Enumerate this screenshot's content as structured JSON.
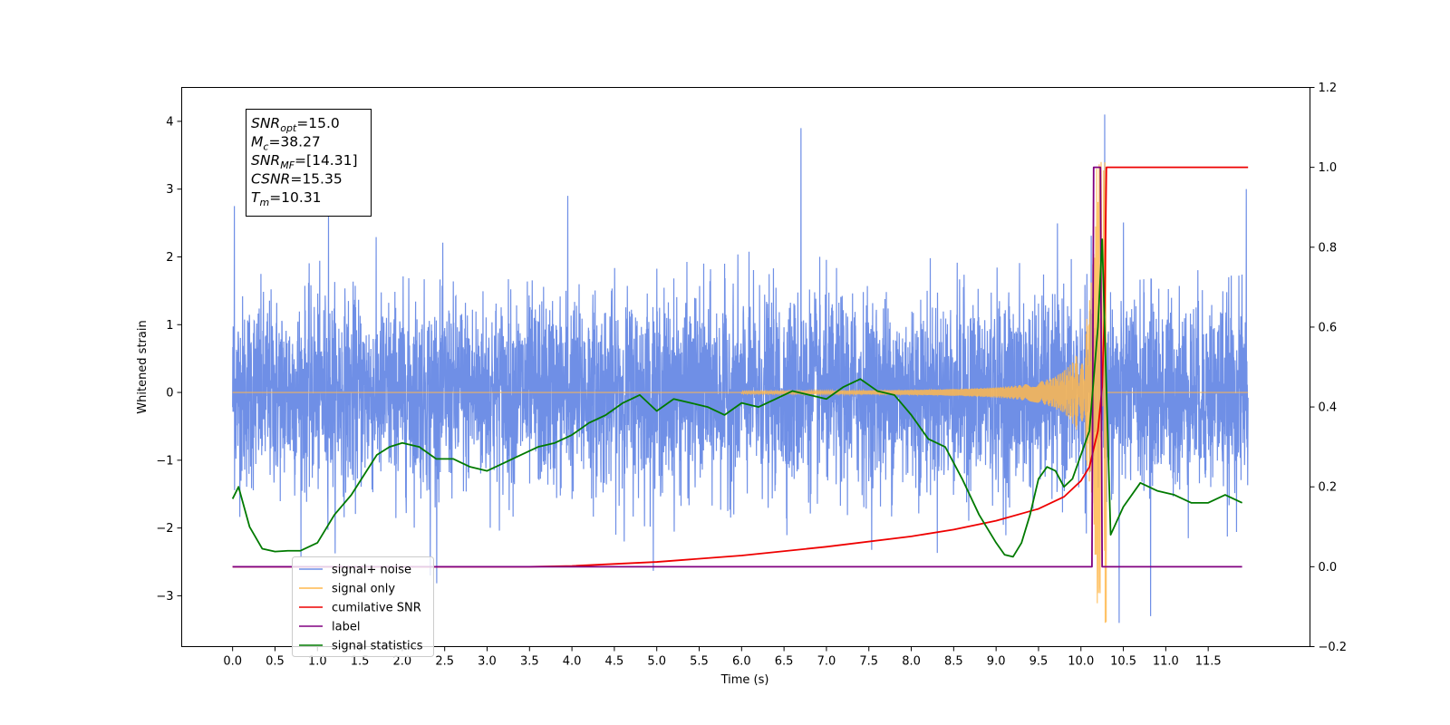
{
  "chart_data": {
    "type": "line",
    "xlabel": "Time (s)",
    "ylabel": "Whitened strain",
    "xlim": [
      -0.6,
      12.7
    ],
    "ylim": [
      -3.75,
      4.5
    ],
    "y2lim": [
      -0.2,
      1.2
    ],
    "x_ticks": [
      0.0,
      0.5,
      1.0,
      1.5,
      2.0,
      2.5,
      3.0,
      3.5,
      4.0,
      4.5,
      5.0,
      5.5,
      6.0,
      6.5,
      7.0,
      7.5,
      8.0,
      8.5,
      9.0,
      9.5,
      10.0,
      10.5,
      11.0,
      11.5
    ],
    "x_tick_labels": [
      "0.0",
      "0.5",
      "1.0",
      "1.5",
      "2.0",
      "2.5",
      "3.0",
      "3.5",
      "4.0",
      "4.5",
      "5.0",
      "5.5",
      "6.0",
      "6.5",
      "7.0",
      "7.5",
      "8.0",
      "8.5",
      "9.0",
      "9.5",
      "10.0",
      "10.5",
      "11.0",
      "11.5"
    ],
    "y_ticks": [
      -3,
      -2,
      -1,
      0,
      1,
      2,
      3,
      4
    ],
    "y_tick_labels": [
      "−3",
      "−2",
      "−1",
      "0",
      "1",
      "2",
      "3",
      "4"
    ],
    "y2_ticks": [
      -0.2,
      0.0,
      0.2,
      0.4,
      0.6,
      0.8,
      1.0,
      1.2
    ],
    "y2_tick_labels": [
      "−0.2",
      "0.0",
      "0.2",
      "0.4",
      "0.6",
      "0.8",
      "1.0",
      "1.2"
    ],
    "grid": false,
    "legend_position": "lower-left",
    "colors": {
      "signal_noise": "#6f8fe6",
      "signal_only": "#ffb84d",
      "cumulative_snr": "#ee0000",
      "label": "#800080",
      "signal_statistics": "#007a00"
    },
    "legend": [
      {
        "key": "signal_noise",
        "label": "signal+ noise"
      },
      {
        "key": "signal_only",
        "label": "signal only"
      },
      {
        "key": "cumulative_snr",
        "label": "cumilative SNR"
      },
      {
        "key": "label",
        "label": "label"
      },
      {
        "key": "signal_statistics",
        "label": "signal statistics"
      }
    ],
    "info_box": [
      {
        "base": "SNR",
        "sub": "opt",
        "value": "=15.0"
      },
      {
        "base": "M",
        "sub": "c",
        "value": "=38.27"
      },
      {
        "base": "SNR",
        "sub": "MF",
        "value": "=[14.31]"
      },
      {
        "base": "CSNR",
        "sub": "",
        "value": "=15.35"
      },
      {
        "base": "T",
        "sub": "m",
        "value": "=10.31"
      }
    ],
    "series": [
      {
        "name": "signal+ noise",
        "axis": "left",
        "x_range": [
          0.0,
          11.97
        ],
        "noise_sigma": 0.7,
        "spike_x": [
          0.02,
          1.13,
          2.33,
          3.95,
          6.7,
          10.28,
          10.45,
          10.82,
          11.95
        ],
        "spike_y": [
          2.75,
          2.6,
          -2.7,
          2.9,
          3.9,
          4.1,
          -3.4,
          -3.3,
          3.0
        ]
      },
      {
        "name": "signal only",
        "axis": "left",
        "chirp_start": 6.0,
        "chirp_end": 10.3,
        "amplitude_start": 0.01,
        "amplitude_peak": 3.4
      },
      {
        "name": "cumilative SNR",
        "axis": "right",
        "x": [
          0.0,
          3.5,
          4.0,
          5.0,
          6.0,
          7.0,
          8.0,
          8.5,
          9.0,
          9.5,
          9.8,
          10.0,
          10.1,
          10.2,
          10.25,
          10.28,
          10.3,
          11.97
        ],
        "y": [
          0.0,
          0.0,
          0.002,
          0.012,
          0.028,
          0.05,
          0.076,
          0.093,
          0.115,
          0.145,
          0.175,
          0.215,
          0.25,
          0.34,
          0.45,
          0.65,
          1.0,
          1.0
        ]
      },
      {
        "name": "label",
        "axis": "right",
        "x": [
          0.0,
          10.13,
          10.15,
          10.23,
          10.25,
          11.9
        ],
        "y": [
          0.0,
          0.0,
          1.0,
          1.0,
          0.0,
          0.0
        ]
      },
      {
        "name": "signal statistics",
        "axis": "right",
        "x": [
          0.0,
          0.07,
          0.2,
          0.35,
          0.5,
          0.65,
          0.8,
          1.0,
          1.2,
          1.4,
          1.55,
          1.7,
          1.85,
          2.0,
          2.2,
          2.4,
          2.6,
          2.8,
          3.0,
          3.2,
          3.4,
          3.6,
          3.8,
          4.0,
          4.2,
          4.4,
          4.6,
          4.8,
          5.0,
          5.2,
          5.4,
          5.6,
          5.8,
          6.0,
          6.2,
          6.4,
          6.6,
          6.8,
          7.0,
          7.2,
          7.4,
          7.6,
          7.8,
          8.0,
          8.2,
          8.4,
          8.6,
          8.8,
          9.0,
          9.1,
          9.2,
          9.3,
          9.4,
          9.5,
          9.6,
          9.7,
          9.8,
          9.9,
          10.0,
          10.1,
          10.2,
          10.25,
          10.3,
          10.35,
          10.5,
          10.7,
          10.9,
          11.1,
          11.3,
          11.5,
          11.7,
          11.9
        ],
        "y": [
          0.17,
          0.2,
          0.1,
          0.045,
          0.038,
          0.04,
          0.04,
          0.06,
          0.13,
          0.18,
          0.23,
          0.28,
          0.3,
          0.31,
          0.3,
          0.27,
          0.27,
          0.25,
          0.24,
          0.26,
          0.28,
          0.3,
          0.31,
          0.33,
          0.36,
          0.38,
          0.41,
          0.43,
          0.39,
          0.42,
          0.41,
          0.4,
          0.38,
          0.41,
          0.4,
          0.42,
          0.44,
          0.43,
          0.42,
          0.45,
          0.47,
          0.44,
          0.43,
          0.38,
          0.32,
          0.3,
          0.22,
          0.13,
          0.06,
          0.03,
          0.025,
          0.06,
          0.13,
          0.22,
          0.25,
          0.24,
          0.2,
          0.22,
          0.28,
          0.34,
          0.6,
          0.82,
          0.45,
          0.08,
          0.15,
          0.21,
          0.19,
          0.18,
          0.16,
          0.16,
          0.18,
          0.16
        ]
      }
    ]
  }
}
